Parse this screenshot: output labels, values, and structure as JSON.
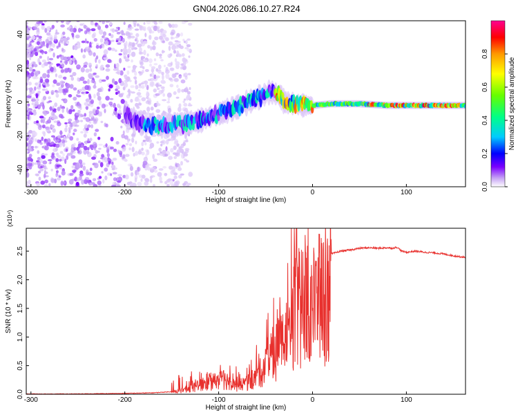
{
  "title": "GN04.2026.086.10.27.R24",
  "chart_data": [
    {
      "type": "heatmap",
      "title": "GN04.2026.086.10.27.R24",
      "xlabel": "Height of straight line (km)",
      "ylabel": "Frequency (Hz)",
      "xlim": [
        -305,
        163
      ],
      "ylim": [
        -50,
        48
      ],
      "x_ticks": [
        -300,
        -200,
        -100,
        0,
        100
      ],
      "y_ticks": [
        -40,
        -20,
        0,
        20,
        40
      ],
      "colorbar": {
        "label": "Normalized spectral amplitude",
        "range": [
          0,
          1
        ],
        "ticks": [
          0.0,
          0.2,
          0.4,
          0.6,
          0.8
        ],
        "colors": [
          "#ffffff",
          "#c9a8f5",
          "#7a00ff",
          "#0000ff",
          "#00ccff",
          "#00ff88",
          "#66ff00",
          "#ffff00",
          "#ff9900",
          "#ff0000",
          "#ff0090"
        ]
      },
      "ridge": {
        "x": [
          -200,
          -180,
          -160,
          -140,
          -120,
          -100,
          -80,
          -60,
          -45,
          -35,
          -30,
          -20,
          -10,
          0,
          20,
          50,
          80,
          100,
          130,
          163
        ],
        "y": [
          -8,
          -13,
          -14,
          -13,
          -11,
          -7,
          -3,
          2,
          6,
          4,
          0,
          -1,
          -2,
          -2,
          -1,
          -1,
          -2,
          -2,
          -2,
          -2
        ]
      },
      "noise_region_x": [
        -305,
        -200
      ]
    },
    {
      "type": "line",
      "xlabel": "Height of straight line (km)",
      "ylabel": "SNR (10 * v/v)",
      "y_multiplier": "(x10⁴)",
      "xlim": [
        -305,
        163
      ],
      "ylim": [
        0,
        2.9
      ],
      "x_ticks": [
        -300,
        -200,
        -100,
        0,
        100
      ],
      "y_ticks": [
        0.0,
        0.5,
        1.0,
        1.5,
        2.0,
        2.5
      ],
      "color": "#e8302d",
      "series": [
        {
          "x": [
            -305,
            -250,
            -200,
            -170,
            -150,
            -140,
            -130,
            -120,
            -110,
            -100,
            -90,
            -80,
            -70,
            -60,
            -50,
            -40,
            -35,
            -30,
            -25,
            -20,
            -18,
            -15,
            -10,
            -5,
            0,
            10,
            20,
            30,
            40,
            50,
            60,
            70,
            80,
            85,
            90,
            95,
            100,
            110,
            120,
            130,
            140,
            150,
            163
          ],
          "y": [
            0.0,
            0.0,
            0.01,
            0.02,
            0.04,
            0.1,
            0.15,
            0.2,
            0.3,
            0.35,
            0.35,
            0.2,
            0.3,
            0.4,
            0.7,
            1.0,
            1.2,
            1.4,
            1.7,
            2.0,
            2.7,
            1.8,
            2.3,
            2.3,
            2.2,
            2.4,
            2.45,
            2.5,
            2.52,
            2.55,
            2.56,
            2.55,
            2.56,
            2.55,
            2.57,
            2.5,
            2.48,
            2.5,
            2.48,
            2.47,
            2.45,
            2.42,
            2.39
          ]
        }
      ]
    }
  ]
}
